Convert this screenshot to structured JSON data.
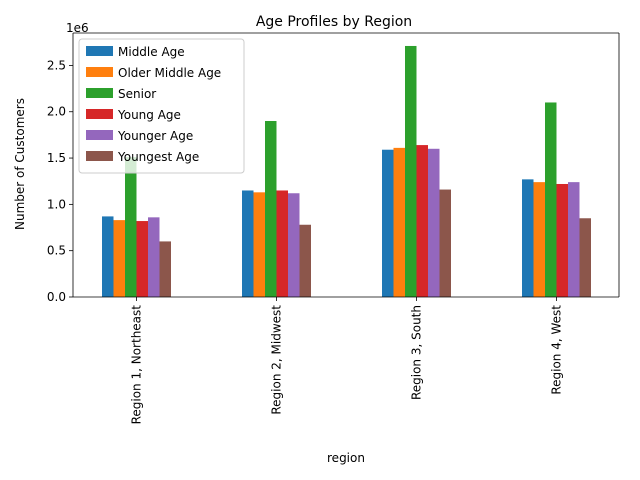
{
  "chart_data": {
    "type": "bar",
    "title": "Age Profiles by Region",
    "xlabel": "region",
    "ylabel": "Number of Customers",
    "y_offset_label": "1e6",
    "categories": [
      "Region 1, Northeast",
      "Region 2, Midwest",
      "Region 3, South",
      "Region 4, West"
    ],
    "ylim": [
      0,
      2850000
    ],
    "yticks": [
      0,
      500000,
      1000000,
      1500000,
      2000000,
      2500000
    ],
    "ytick_labels": [
      "0.0",
      "0.5",
      "1.0",
      "1.5",
      "2.0",
      "2.5"
    ],
    "grid": false,
    "legend_position": "upper-left",
    "series": [
      {
        "name": "Middle Age",
        "color": "#1f77b4",
        "values": [
          870000,
          1150000,
          1590000,
          1270000
        ]
      },
      {
        "name": "Older Middle Age",
        "color": "#ff7f0e",
        "values": [
          830000,
          1130000,
          1610000,
          1240000
        ]
      },
      {
        "name": "Senior",
        "color": "#2ca02c",
        "values": [
          1510000,
          1900000,
          2710000,
          2100000
        ]
      },
      {
        "name": "Young Age",
        "color": "#d62728",
        "values": [
          820000,
          1150000,
          1640000,
          1220000
        ]
      },
      {
        "name": "Younger Age",
        "color": "#9467bd",
        "values": [
          860000,
          1120000,
          1600000,
          1240000
        ]
      },
      {
        "name": "Youngest Age",
        "color": "#8c564b",
        "values": [
          600000,
          780000,
          1160000,
          850000
        ]
      }
    ]
  }
}
